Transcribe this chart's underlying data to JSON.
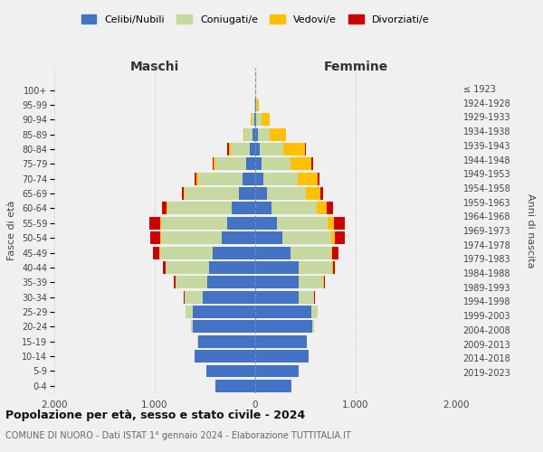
{
  "age_groups": [
    "0-4",
    "5-9",
    "10-14",
    "15-19",
    "20-24",
    "25-29",
    "30-34",
    "35-39",
    "40-44",
    "45-49",
    "50-54",
    "55-59",
    "60-64",
    "65-69",
    "70-74",
    "75-79",
    "80-84",
    "85-89",
    "90-94",
    "95-99",
    "100+"
  ],
  "birth_years": [
    "2019-2023",
    "2014-2018",
    "2009-2013",
    "2004-2008",
    "1999-2003",
    "1994-1998",
    "1989-1993",
    "1984-1988",
    "1979-1983",
    "1974-1978",
    "1969-1973",
    "1964-1968",
    "1959-1963",
    "1954-1958",
    "1949-1953",
    "1944-1948",
    "1939-1943",
    "1934-1938",
    "1929-1933",
    "1924-1928",
    "≤ 1923"
  ],
  "maschi": {
    "celibi": [
      400,
      490,
      600,
      570,
      620,
      620,
      520,
      480,
      460,
      420,
      330,
      280,
      230,
      165,
      130,
      90,
      55,
      25,
      10,
      4,
      2
    ],
    "coniugati": [
      0,
      0,
      2,
      5,
      20,
      70,
      180,
      310,
      430,
      530,
      610,
      660,
      640,
      540,
      440,
      310,
      190,
      80,
      30,
      5,
      1
    ],
    "vedovi": [
      0,
      0,
      0,
      0,
      0,
      0,
      0,
      0,
      5,
      5,
      5,
      10,
      10,
      10,
      15,
      10,
      20,
      10,
      5,
      0,
      0
    ],
    "divorziati": [
      0,
      0,
      0,
      0,
      0,
      5,
      10,
      20,
      20,
      60,
      100,
      100,
      50,
      15,
      15,
      15,
      10,
      5,
      0,
      0,
      0
    ]
  },
  "femmine": {
    "nubili": [
      360,
      430,
      530,
      510,
      570,
      560,
      430,
      430,
      430,
      350,
      270,
      215,
      165,
      120,
      80,
      65,
      45,
      25,
      10,
      5,
      2
    ],
    "coniugate": [
      0,
      0,
      2,
      5,
      20,
      60,
      160,
      250,
      340,
      410,
      490,
      510,
      450,
      380,
      340,
      290,
      230,
      120,
      50,
      10,
      1
    ],
    "vedove": [
      0,
      0,
      0,
      0,
      0,
      0,
      0,
      5,
      5,
      10,
      30,
      60,
      100,
      150,
      200,
      200,
      220,
      160,
      80,
      20,
      1
    ],
    "divorziate": [
      0,
      0,
      0,
      0,
      0,
      0,
      5,
      10,
      20,
      60,
      100,
      110,
      60,
      30,
      20,
      20,
      10,
      5,
      0,
      0,
      0
    ]
  },
  "color_celibi": "#4472c4",
  "color_coniugati": "#c6d9a0",
  "color_vedovi": "#ffc000",
  "color_divorziati": "#cc0000",
  "title1": "Popolazione per età, sesso e stato civile - 2024",
  "title2": "COMUNE DI NUORO - Dati ISTAT 1° gennaio 2024 - Elaborazione TUTTITALIA.IT",
  "xlabel_left": "Maschi",
  "xlabel_right": "Femmine",
  "ylabel_left": "Fasce di età",
  "ylabel_right": "Anni di nascita",
  "xlim": 2000,
  "legend_labels": [
    "Celibi/Nubili",
    "Coniugati/e",
    "Vedovi/e",
    "Divorziati/e"
  ],
  "background_color": "#f0f0f0"
}
